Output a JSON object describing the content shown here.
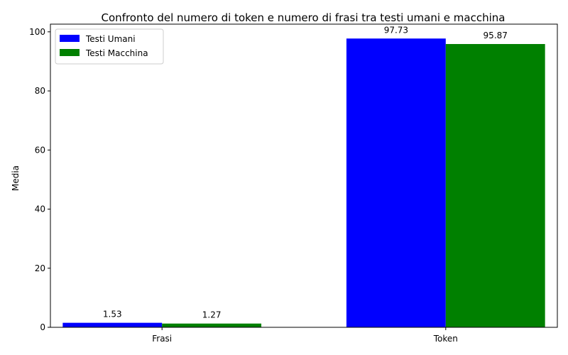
{
  "chart_data": {
    "type": "bar",
    "title": "Confronto del numero di token e numero di frasi tra testi umani e macchina",
    "xlabel": "",
    "ylabel": "Media",
    "categories": [
      "Frasi",
      "Token"
    ],
    "series": [
      {
        "name": "Testi Umani",
        "values": [
          1.53,
          97.73
        ],
        "color": "#0000ff"
      },
      {
        "name": "Testi Macchina",
        "values": [
          1.27,
          95.87
        ],
        "color": "#008000"
      }
    ],
    "ylim": [
      0,
      102.6
    ],
    "yticks": [
      0,
      20,
      40,
      60,
      80,
      100
    ],
    "grid": false,
    "legend": "top-left",
    "data_labels": true
  }
}
